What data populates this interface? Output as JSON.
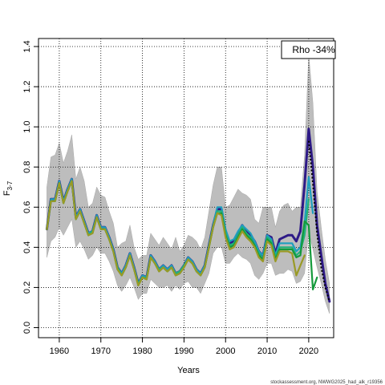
{
  "chart_data": {
    "type": "line",
    "xlabel": "Years",
    "ylabel": "F",
    "ylabel_subscript": "3-7",
    "xlim": [
      1955,
      2026
    ],
    "ylim": [
      -0.05,
      1.44
    ],
    "xticks": [
      "1960",
      "1970",
      "1980",
      "1990",
      "2000",
      "2010",
      "2020"
    ],
    "yticks": [
      "0.0",
      "0.2",
      "0.4",
      "0.6",
      "0.8",
      "1.0",
      "1.2",
      "1.4"
    ],
    "grid": true,
    "legend": {
      "placement": "top-right",
      "text": "Rho -34%"
    },
    "source_note": "stockassessment.org, NWWG2025_had_alk_r19356",
    "band": {
      "x": [
        1957,
        1958,
        1959,
        1960,
        1961,
        1962,
        1963,
        1964,
        1965,
        1966,
        1967,
        1968,
        1969,
        1970,
        1971,
        1972,
        1973,
        1974,
        1975,
        1976,
        1977,
        1978,
        1979,
        1980,
        1981,
        1982,
        1983,
        1984,
        1985,
        1986,
        1987,
        1988,
        1989,
        1990,
        1991,
        1992,
        1993,
        1994,
        1995,
        1996,
        1997,
        1998,
        1999,
        2000,
        2001,
        2002,
        2003,
        2004,
        2005,
        2006,
        2007,
        2008,
        2009,
        2010,
        2011,
        2012,
        2013,
        2014,
        2015,
        2016,
        2017,
        2018,
        2019,
        2020,
        2021,
        2022,
        2023,
        2024,
        2025
      ],
      "lower": [
        0.35,
        0.43,
        0.45,
        0.5,
        0.46,
        0.5,
        0.54,
        0.4,
        0.43,
        0.39,
        0.34,
        0.36,
        0.4,
        0.37,
        0.37,
        0.33,
        0.28,
        0.21,
        0.18,
        0.21,
        0.25,
        0.2,
        0.14,
        0.17,
        0.17,
        0.24,
        0.22,
        0.2,
        0.2,
        0.21,
        0.18,
        0.21,
        0.19,
        0.22,
        0.23,
        0.2,
        0.2,
        0.17,
        0.22,
        0.27,
        0.37,
        0.4,
        0.4,
        0.32,
        0.32,
        0.35,
        0.37,
        0.35,
        0.34,
        0.32,
        0.26,
        0.24,
        0.27,
        0.32,
        0.32,
        0.26,
        0.27,
        0.27,
        0.29,
        0.28,
        0.22,
        0.23,
        0.27,
        0.48,
        0.39,
        0.3,
        0.22,
        0.13,
        0.07
      ],
      "upper": [
        0.7,
        0.85,
        0.86,
        0.92,
        0.82,
        0.88,
        0.96,
        0.74,
        0.8,
        0.73,
        0.6,
        0.62,
        0.7,
        0.66,
        0.65,
        0.58,
        0.52,
        0.4,
        0.42,
        0.43,
        0.51,
        0.4,
        0.34,
        0.36,
        0.36,
        0.47,
        0.44,
        0.41,
        0.45,
        0.42,
        0.39,
        0.45,
        0.38,
        0.41,
        0.46,
        0.45,
        0.43,
        0.39,
        0.45,
        0.58,
        0.71,
        0.8,
        0.8,
        0.6,
        0.61,
        0.65,
        0.69,
        0.67,
        0.66,
        0.64,
        0.54,
        0.52,
        0.6,
        0.6,
        0.6,
        0.5,
        0.58,
        0.61,
        0.62,
        0.58,
        0.6,
        0.6,
        0.86,
        1.36,
        1.12,
        0.68,
        0.5,
        0.34,
        0.22
      ]
    },
    "series": [
      {
        "color": "#2e1a87",
        "x": [
          1957,
          1958,
          1959,
          1960,
          1961,
          1962,
          1963,
          1964,
          1965,
          1966,
          1967,
          1968,
          1969,
          1970,
          1971,
          1972,
          1973,
          1974,
          1975,
          1976,
          1977,
          1978,
          1979,
          1980,
          1981,
          1982,
          1983,
          1984,
          1985,
          1986,
          1987,
          1988,
          1989,
          1990,
          1991,
          1992,
          1993,
          1994,
          1995,
          1996,
          1997,
          1998,
          1999,
          2000,
          2001,
          2002,
          2003,
          2004,
          2005,
          2006,
          2007,
          2008,
          2009,
          2010,
          2011,
          2012,
          2013,
          2014,
          2015,
          2016,
          2017,
          2018,
          2019,
          2020,
          2021,
          2022,
          2023,
          2024,
          2025
        ],
        "y": [
          0.49,
          0.64,
          0.64,
          0.73,
          0.63,
          0.69,
          0.74,
          0.55,
          0.59,
          0.53,
          0.47,
          0.48,
          0.56,
          0.5,
          0.5,
          0.45,
          0.39,
          0.3,
          0.27,
          0.31,
          0.37,
          0.3,
          0.22,
          0.26,
          0.25,
          0.36,
          0.33,
          0.29,
          0.31,
          0.29,
          0.31,
          0.27,
          0.28,
          0.31,
          0.35,
          0.33,
          0.29,
          0.27,
          0.31,
          0.41,
          0.51,
          0.59,
          0.59,
          0.48,
          0.42,
          0.43,
          0.47,
          0.51,
          0.48,
          0.46,
          0.43,
          0.38,
          0.36,
          0.46,
          0.45,
          0.37,
          0.44,
          0.45,
          0.46,
          0.46,
          0.43,
          0.48,
          0.71,
          0.99,
          0.8,
          0.51,
          0.36,
          0.22,
          0.13
        ]
      },
      {
        "color": "#1f9fbf",
        "x": [
          1957,
          1958,
          1959,
          1960,
          1961,
          1962,
          1963,
          1964,
          1965,
          1966,
          1967,
          1968,
          1969,
          1970,
          1971,
          1972,
          1973,
          1974,
          1975,
          1976,
          1977,
          1978,
          1979,
          1980,
          1981,
          1982,
          1983,
          1984,
          1985,
          1986,
          1987,
          1988,
          1989,
          1990,
          1991,
          1992,
          1993,
          1994,
          1995,
          1996,
          1997,
          1998,
          1999,
          2000,
          2001,
          2002,
          2003,
          2004,
          2005,
          2006,
          2007,
          2008,
          2009,
          2010,
          2011,
          2012,
          2013,
          2014,
          2015,
          2016,
          2017,
          2018,
          2019,
          2020,
          2021
        ],
        "y": [
          0.49,
          0.64,
          0.64,
          0.73,
          0.63,
          0.69,
          0.74,
          0.55,
          0.59,
          0.53,
          0.47,
          0.48,
          0.56,
          0.5,
          0.5,
          0.45,
          0.39,
          0.3,
          0.27,
          0.31,
          0.37,
          0.3,
          0.22,
          0.26,
          0.25,
          0.36,
          0.33,
          0.29,
          0.31,
          0.29,
          0.31,
          0.27,
          0.28,
          0.31,
          0.35,
          0.33,
          0.29,
          0.27,
          0.31,
          0.41,
          0.51,
          0.6,
          0.6,
          0.49,
          0.43,
          0.44,
          0.48,
          0.51,
          0.49,
          0.47,
          0.43,
          0.38,
          0.36,
          0.46,
          0.44,
          0.36,
          0.42,
          0.42,
          0.42,
          0.42,
          0.38,
          0.4,
          0.52,
          0.75,
          0.57
        ]
      },
      {
        "color": "#21b27a",
        "x": [
          1957,
          1958,
          1959,
          1960,
          1961,
          1962,
          1963,
          1964,
          1965,
          1966,
          1967,
          1968,
          1969,
          1970,
          1971,
          1972,
          1973,
          1974,
          1975,
          1976,
          1977,
          1978,
          1979,
          1980,
          1981,
          1982,
          1983,
          1984,
          1985,
          1986,
          1987,
          1988,
          1989,
          1990,
          1991,
          1992,
          1993,
          1994,
          1995,
          1996,
          1997,
          1998,
          1999,
          2000,
          2001,
          2002,
          2003,
          2004,
          2005,
          2006,
          2007,
          2008,
          2009,
          2010,
          2011,
          2012,
          2013,
          2014,
          2015,
          2016,
          2017,
          2018,
          2019,
          2020
        ],
        "y": [
          0.49,
          0.63,
          0.63,
          0.72,
          0.62,
          0.68,
          0.73,
          0.54,
          0.58,
          0.52,
          0.46,
          0.48,
          0.55,
          0.49,
          0.49,
          0.44,
          0.38,
          0.3,
          0.26,
          0.3,
          0.36,
          0.29,
          0.22,
          0.25,
          0.25,
          0.35,
          0.32,
          0.29,
          0.3,
          0.28,
          0.3,
          0.27,
          0.28,
          0.31,
          0.34,
          0.32,
          0.28,
          0.26,
          0.3,
          0.4,
          0.5,
          0.58,
          0.58,
          0.47,
          0.41,
          0.42,
          0.46,
          0.5,
          0.47,
          0.45,
          0.41,
          0.37,
          0.34,
          0.45,
          0.43,
          0.35,
          0.4,
          0.4,
          0.4,
          0.4,
          0.36,
          0.38,
          0.46,
          0.64
        ]
      },
      {
        "color": "#159a3c",
        "x": [
          1957,
          1958,
          1959,
          1960,
          1961,
          1962,
          1963,
          1964,
          1965,
          1966,
          1967,
          1968,
          1969,
          1970,
          1971,
          1972,
          1973,
          1974,
          1975,
          1976,
          1977,
          1978,
          1979,
          1980,
          1981,
          1982,
          1983,
          1984,
          1985,
          1986,
          1987,
          1988,
          1989,
          1990,
          1991,
          1992,
          1993,
          1994,
          1995,
          1996,
          1997,
          1998,
          1999,
          2000,
          2001,
          2002,
          2003,
          2004,
          2005,
          2006,
          2007,
          2008,
          2009,
          2010,
          2011,
          2012,
          2013,
          2014,
          2015,
          2016,
          2017,
          2018,
          2019,
          2020,
          2021,
          2022
        ],
        "y": [
          0.49,
          0.63,
          0.63,
          0.72,
          0.62,
          0.68,
          0.73,
          0.54,
          0.58,
          0.52,
          0.46,
          0.47,
          0.55,
          0.49,
          0.49,
          0.44,
          0.38,
          0.29,
          0.26,
          0.3,
          0.36,
          0.29,
          0.21,
          0.25,
          0.24,
          0.35,
          0.32,
          0.28,
          0.3,
          0.28,
          0.3,
          0.26,
          0.27,
          0.3,
          0.34,
          0.32,
          0.28,
          0.26,
          0.3,
          0.4,
          0.5,
          0.57,
          0.57,
          0.46,
          0.4,
          0.41,
          0.45,
          0.49,
          0.46,
          0.44,
          0.41,
          0.36,
          0.34,
          0.44,
          0.42,
          0.34,
          0.39,
          0.39,
          0.39,
          0.39,
          0.35,
          0.36,
          0.53,
          0.51,
          0.19,
          0.25
        ]
      },
      {
        "color": "#9a9a26",
        "x": [
          1957,
          1958,
          1959,
          1960,
          1961,
          1962,
          1963,
          1964,
          1965,
          1966,
          1967,
          1968,
          1969,
          1970,
          1971,
          1972,
          1973,
          1974,
          1975,
          1976,
          1977,
          1978,
          1979,
          1980,
          1981,
          1982,
          1983,
          1984,
          1985,
          1986,
          1987,
          1988,
          1989,
          1990,
          1991,
          1992,
          1993,
          1994,
          1995,
          1996,
          1997,
          1998,
          1999,
          2000,
          2001,
          2002,
          2003,
          2004,
          2005,
          2006,
          2007,
          2008,
          2009,
          2010,
          2011,
          2012,
          2013,
          2014,
          2015,
          2016,
          2017,
          2018,
          2019
        ],
        "y": [
          0.49,
          0.63,
          0.63,
          0.72,
          0.62,
          0.68,
          0.73,
          0.54,
          0.58,
          0.52,
          0.46,
          0.47,
          0.55,
          0.49,
          0.49,
          0.44,
          0.38,
          0.29,
          0.26,
          0.3,
          0.36,
          0.29,
          0.21,
          0.25,
          0.24,
          0.35,
          0.32,
          0.28,
          0.3,
          0.28,
          0.3,
          0.26,
          0.27,
          0.3,
          0.34,
          0.32,
          0.28,
          0.26,
          0.3,
          0.4,
          0.5,
          0.57,
          0.56,
          0.45,
          0.39,
          0.4,
          0.44,
          0.48,
          0.45,
          0.43,
          0.4,
          0.35,
          0.33,
          0.43,
          0.41,
          0.33,
          0.38,
          0.38,
          0.38,
          0.37,
          0.26,
          0.31,
          0.36
        ]
      }
    ],
    "projection": {
      "style": "dotted",
      "color": "#000000",
      "x": [
        2020,
        2021,
        2022,
        2023,
        2024,
        2025
      ],
      "y": [
        0.93,
        0.72,
        0.47,
        0.3,
        0.2,
        0.13
      ]
    }
  }
}
